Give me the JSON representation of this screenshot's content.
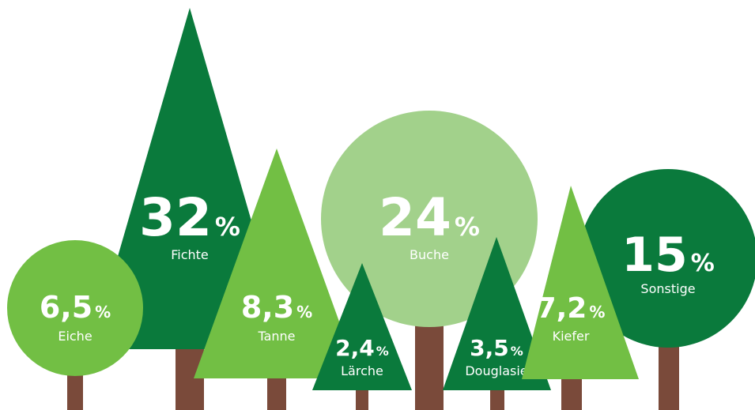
{
  "trees": [
    {
      "name": "Eiche",
      "value": "6,5",
      "unit": "%"
    },
    {
      "name": "Fichte",
      "value": "32",
      "unit": "%"
    },
    {
      "name": "Tanne",
      "value": "8,3",
      "unit": "%"
    },
    {
      "name": "Buche",
      "value": "24",
      "unit": "%"
    },
    {
      "name": "Lärche",
      "value": "2,4",
      "unit": "%"
    },
    {
      "name": "Douglasie",
      "value": "3,5",
      "unit": "%"
    },
    {
      "name": "Kiefer",
      "value": "7,2",
      "unit": "%"
    },
    {
      "name": "Sonstige",
      "value": "15",
      "unit": "%"
    }
  ]
}
